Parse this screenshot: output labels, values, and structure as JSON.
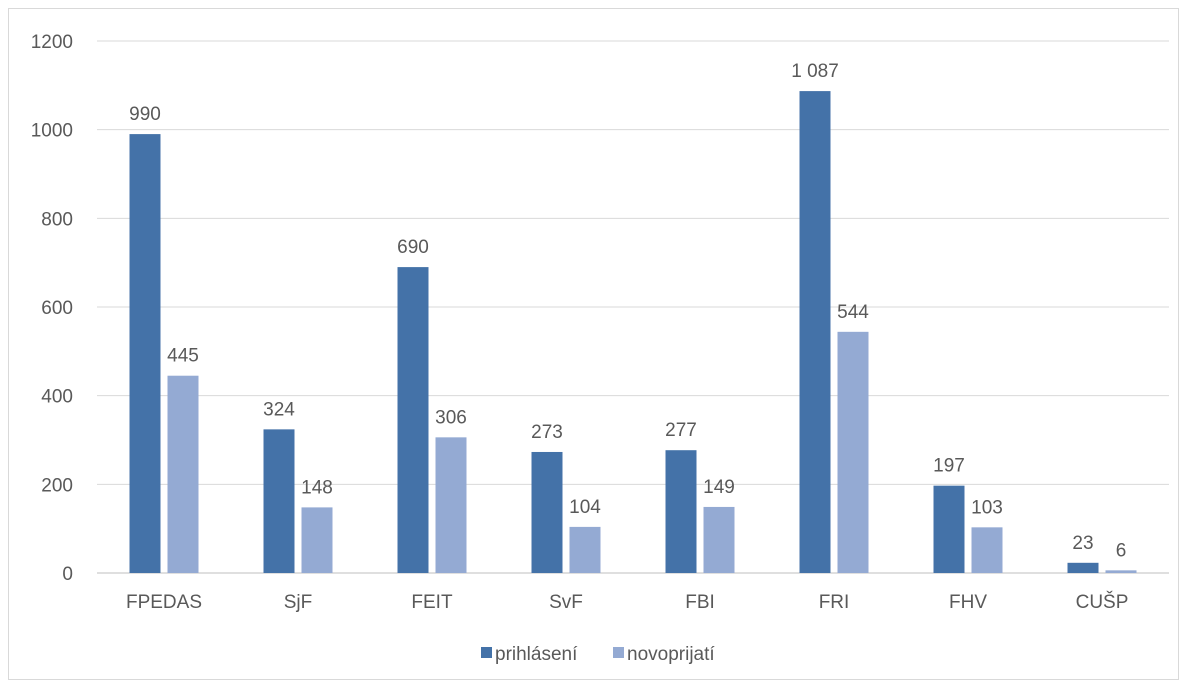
{
  "chart_data": {
    "type": "bar",
    "categories": [
      "FPEDAS",
      "SjF",
      "FEIT",
      "SvF",
      "FBI",
      "FRI",
      "FHV",
      "CUŠP"
    ],
    "series": [
      {
        "name": "prihlásení",
        "color": "#4472a8",
        "values": [
          990,
          324,
          690,
          273,
          277,
          1087,
          197,
          23
        ],
        "labels": [
          "990",
          "324",
          "690",
          "273",
          "277",
          "1 087",
          "197",
          "23"
        ]
      },
      {
        "name": "novoprijatí",
        "color": "#94aad3",
        "values": [
          445,
          148,
          306,
          104,
          149,
          544,
          103,
          6
        ],
        "labels": [
          "445",
          "148",
          "306",
          "104",
          "149",
          "544",
          "103",
          "6"
        ]
      }
    ],
    "ylim": [
      0,
      1200
    ],
    "yticks": [
      0,
      200,
      400,
      600,
      800,
      1000,
      1200
    ],
    "grid": true,
    "legend_position": "bottom",
    "gridline_color": "#d9d9d9",
    "axis_color": "#bfbfbf"
  }
}
